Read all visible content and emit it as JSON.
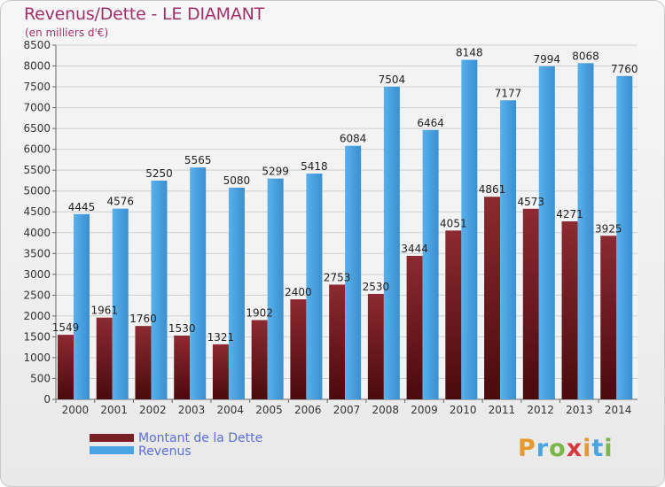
{
  "chart_data": {
    "type": "bar",
    "title": "Revenus/Dette - LE DIAMANT",
    "subtitle": "(en milliers d'€)",
    "categories": [
      "2000",
      "2001",
      "2002",
      "2003",
      "2004",
      "2005",
      "2006",
      "2007",
      "2008",
      "2009",
      "2010",
      "2011",
      "2012",
      "2013",
      "2014"
    ],
    "series": [
      {
        "name": "Montant de la Dette",
        "color": "#7a1f24",
        "values": [
          1549,
          1961,
          1760,
          1530,
          1321,
          1902,
          2400,
          2753,
          2530,
          3444,
          4051,
          4861,
          4573,
          4271,
          3925
        ]
      },
      {
        "name": "Revenus",
        "color": "#4aa3e2",
        "values": [
          4445,
          4576,
          5250,
          5565,
          5080,
          5299,
          5418,
          6084,
          7504,
          6464,
          8148,
          7177,
          7994,
          8068,
          7760
        ]
      }
    ],
    "value_labels": {
      "Montant de la Dette": [
        "1549",
        "1961",
        "1760",
        "1530",
        "1321",
        "1902",
        "2400",
        "2753",
        "2530",
        "3444",
        "4051",
        "4861",
        "4573",
        "4271",
        "3925"
      ],
      "Revenus": [
        "4445",
        "4576",
        "5250",
        "5565",
        "5080",
        "5299",
        "5418",
        "6084",
        "7504",
        "6464",
        "8148",
        "7177",
        "7994",
        "8068",
        "7760"
      ]
    },
    "ylim": [
      0,
      8500
    ],
    "ytick_step": 500,
    "grid": true,
    "legend_position": "bottom-left"
  },
  "logo_text": "Proxiti",
  "logo_colors": [
    "#e8992e",
    "#4aa3e2",
    "#7ab648",
    "#d4393d",
    "#e8992e",
    "#4aa3e2",
    "#7ab648"
  ]
}
